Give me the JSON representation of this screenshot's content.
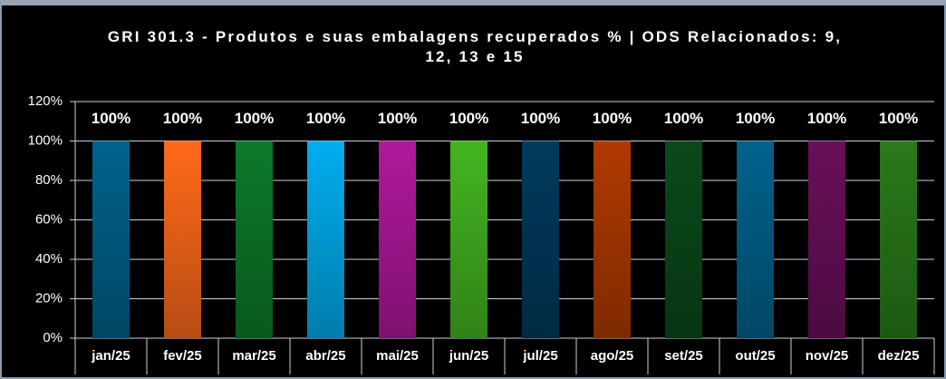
{
  "chart_data": {
    "type": "bar",
    "title": "GRI 301.3 - Produtos e suas embalagens recuperados % | ODS Relacionados: 9, 12, 13 e 15",
    "categories": [
      "jan/25",
      "fev/25",
      "mar/25",
      "abr/25",
      "mai/25",
      "jun/25",
      "jul/25",
      "ago/25",
      "set/25",
      "out/25",
      "nov/25",
      "dez/25"
    ],
    "values": [
      100,
      100,
      100,
      100,
      100,
      100,
      100,
      100,
      100,
      100,
      100,
      100
    ],
    "value_labels": [
      "100%",
      "100%",
      "100%",
      "100%",
      "100%",
      "100%",
      "100%",
      "100%",
      "100%",
      "100%",
      "100%",
      "100%"
    ],
    "colors": [
      "#00628c",
      "#ff6a1a",
      "#0c7a2a",
      "#00aeef",
      "#b0189c",
      "#44b521",
      "#003a5c",
      "#b03a00",
      "#0a4a1a",
      "#00628c",
      "#6a0f5a",
      "#2a7a1a"
    ],
    "ylim": [
      0,
      120
    ],
    "yticks": [
      {
        "value": 0,
        "label": "0%"
      },
      {
        "value": 20,
        "label": "20%"
      },
      {
        "value": 40,
        "label": "40%"
      },
      {
        "value": 60,
        "label": "60%"
      },
      {
        "value": 80,
        "label": "80%"
      },
      {
        "value": 100,
        "label": "100%"
      },
      {
        "value": 120,
        "label": "120%"
      }
    ],
    "grid": true
  }
}
